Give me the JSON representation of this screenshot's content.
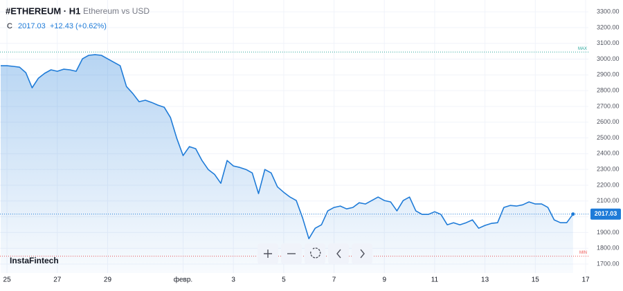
{
  "header": {
    "symbol": "#ETHEREUM · H1",
    "description": "Ethereum vs USD",
    "close_label": "C",
    "change": "+12.43 (+0.62%)"
  },
  "watermark": "InstaFintech",
  "chart_data": {
    "type": "area",
    "close": 2017.03,
    "categories": [
      null,
      "25",
      null,
      null,
      null,
      null,
      null,
      null,
      null,
      "27",
      null,
      null,
      null,
      null,
      null,
      null,
      null,
      "29",
      null,
      null,
      null,
      null,
      null,
      null,
      null,
      null,
      null,
      null,
      null,
      "февр.",
      null,
      null,
      null,
      null,
      null,
      null,
      null,
      "3",
      null,
      null,
      null,
      null,
      null,
      null,
      null,
      "5",
      null,
      null,
      null,
      null,
      null,
      null,
      null,
      "7",
      null,
      null,
      null,
      null,
      null,
      null,
      null,
      "9",
      null,
      null,
      null,
      null,
      null,
      null,
      null,
      "11",
      null,
      null,
      null,
      null,
      null,
      null,
      null,
      "13",
      null,
      null,
      null,
      null,
      null,
      null,
      null,
      "15",
      null,
      null,
      null,
      null,
      null,
      null,
      null,
      "17"
    ],
    "series": [
      {
        "name": "Ethereum vs USD",
        "color": "#1e7bd8",
        "values": [
          2958,
          2958,
          2954,
          2949,
          2914,
          2818,
          2879,
          2910,
          2932,
          2923,
          2936,
          2932,
          2923,
          3002,
          3024,
          3028,
          3024,
          3002,
          2980,
          2958,
          2826,
          2782,
          2730,
          2739,
          2725,
          2708,
          2695,
          2629,
          2497,
          2388,
          2445,
          2432,
          2357,
          2300,
          2269,
          2212,
          2357,
          2322,
          2313,
          2300,
          2278,
          2147,
          2300,
          2278,
          2190,
          2155,
          2125,
          2103,
          1993,
          1861,
          1927,
          1949,
          2037,
          2059,
          2068,
          2050,
          2059,
          2089,
          2081,
          2103,
          2125,
          2103,
          2094,
          2037,
          2103,
          2125,
          2037,
          2015,
          2015,
          2032,
          2015,
          1949,
          1962,
          1949,
          1962,
          1980,
          1927,
          1945,
          1958,
          1962,
          2059,
          2072,
          2068,
          2076,
          2094,
          2081,
          2081,
          2059,
          1980,
          1962,
          1962,
          2017.03,
          null,
          null
        ]
      }
    ],
    "ylim": [
      1643,
      3375
    ],
    "yticks": [
      {
        "value": 1700,
        "label": "1700.00"
      },
      {
        "value": 1800,
        "label": "1800.00"
      },
      {
        "value": 1900,
        "label": "1900.00"
      },
      {
        "value": 2000,
        "label": "2000.00"
      },
      {
        "value": 2100,
        "label": "2100.00"
      },
      {
        "value": 2200,
        "label": "2200.00"
      },
      {
        "value": 2300,
        "label": "2300.00"
      },
      {
        "value": 2400,
        "label": "2400.00"
      },
      {
        "value": 2500,
        "label": "2500.00"
      },
      {
        "value": 2600,
        "label": "2600.00"
      },
      {
        "value": 2700,
        "label": "2700.00"
      },
      {
        "value": 2800,
        "label": "2800.00"
      },
      {
        "value": 2900,
        "label": "2900.00"
      },
      {
        "value": 3000,
        "label": "3000.00"
      },
      {
        "value": 3100,
        "label": "3100.00"
      },
      {
        "value": 3200,
        "label": "3200.00"
      },
      {
        "value": 3300,
        "label": "3300.00"
      }
    ],
    "max_line": {
      "value": 3045,
      "label": "MAX",
      "color": "#26a69a"
    },
    "min_line": {
      "value": 1750,
      "label": "MIN",
      "color": "#ef5350"
    },
    "grid": true
  }
}
